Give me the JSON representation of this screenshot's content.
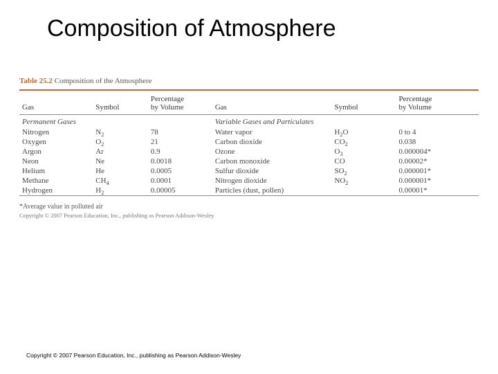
{
  "slide": {
    "title": "Composition of Atmosphere",
    "copyright": "Copyright © 2007 Pearson Education, Inc., publishing as Pearson Addison-Wesley"
  },
  "table": {
    "caption_number": "Table 25.2",
    "caption_text": "Composition of the Atmosphere",
    "footnote": "*Average value in polluted air",
    "internal_copyright": "Copyright © 2007 Pearson Education, Inc., publishing as Pearson Addison-Wesley",
    "rule_color": "#b06a3a",
    "headers": {
      "gas": "Gas",
      "symbol": "Symbol",
      "percent_line1": "Percentage",
      "percent_line2": "by Volume"
    },
    "left_section": "Permanent Gases",
    "right_section": "Variable Gases and Particulates",
    "left_rows": [
      {
        "gas": "Nitrogen",
        "symbol_base": "N",
        "symbol_sub": "2",
        "pct": "78"
      },
      {
        "gas": "Oxygen",
        "symbol_base": "O",
        "symbol_sub": "2",
        "pct": "21"
      },
      {
        "gas": "Argon",
        "symbol_base": "Ar",
        "symbol_sub": "",
        "pct": "0.9"
      },
      {
        "gas": "Neon",
        "symbol_base": "Ne",
        "symbol_sub": "",
        "pct": "0.0018"
      },
      {
        "gas": "Helium",
        "symbol_base": "He",
        "symbol_sub": "",
        "pct": "0.0005"
      },
      {
        "gas": "Methane",
        "symbol_base": "CH",
        "symbol_sub": "4",
        "pct": "0.0001"
      },
      {
        "gas": "Hydrogen",
        "symbol_base": "H",
        "symbol_sub": "2",
        "pct": "0.00005"
      }
    ],
    "right_rows": [
      {
        "gas": "Water vapor",
        "symbol_base": "H",
        "symbol_sub": "2",
        "symbol_tail": "O",
        "pct": "0 to 4"
      },
      {
        "gas": "Carbon dioxide",
        "symbol_base": "CO",
        "symbol_sub": "2",
        "symbol_tail": "",
        "pct": "0.038"
      },
      {
        "gas": "Ozone",
        "symbol_base": "O",
        "symbol_sub": "3",
        "symbol_tail": "",
        "pct": "0.000004*"
      },
      {
        "gas": "Carbon monoxide",
        "symbol_base": "CO",
        "symbol_sub": "",
        "symbol_tail": "",
        "pct": "0.00002*"
      },
      {
        "gas": "Sulfur dioxide",
        "symbol_base": "SO",
        "symbol_sub": "2",
        "symbol_tail": "",
        "pct": "0.000001*"
      },
      {
        "gas": "Nitrogen dioxide",
        "symbol_base": "NO",
        "symbol_sub": "2",
        "symbol_tail": "",
        "pct": "0.000001*"
      },
      {
        "gas": "Particles (dust, pollen)",
        "symbol_base": "",
        "symbol_sub": "",
        "symbol_tail": "",
        "pct": "0.00001*"
      }
    ]
  }
}
